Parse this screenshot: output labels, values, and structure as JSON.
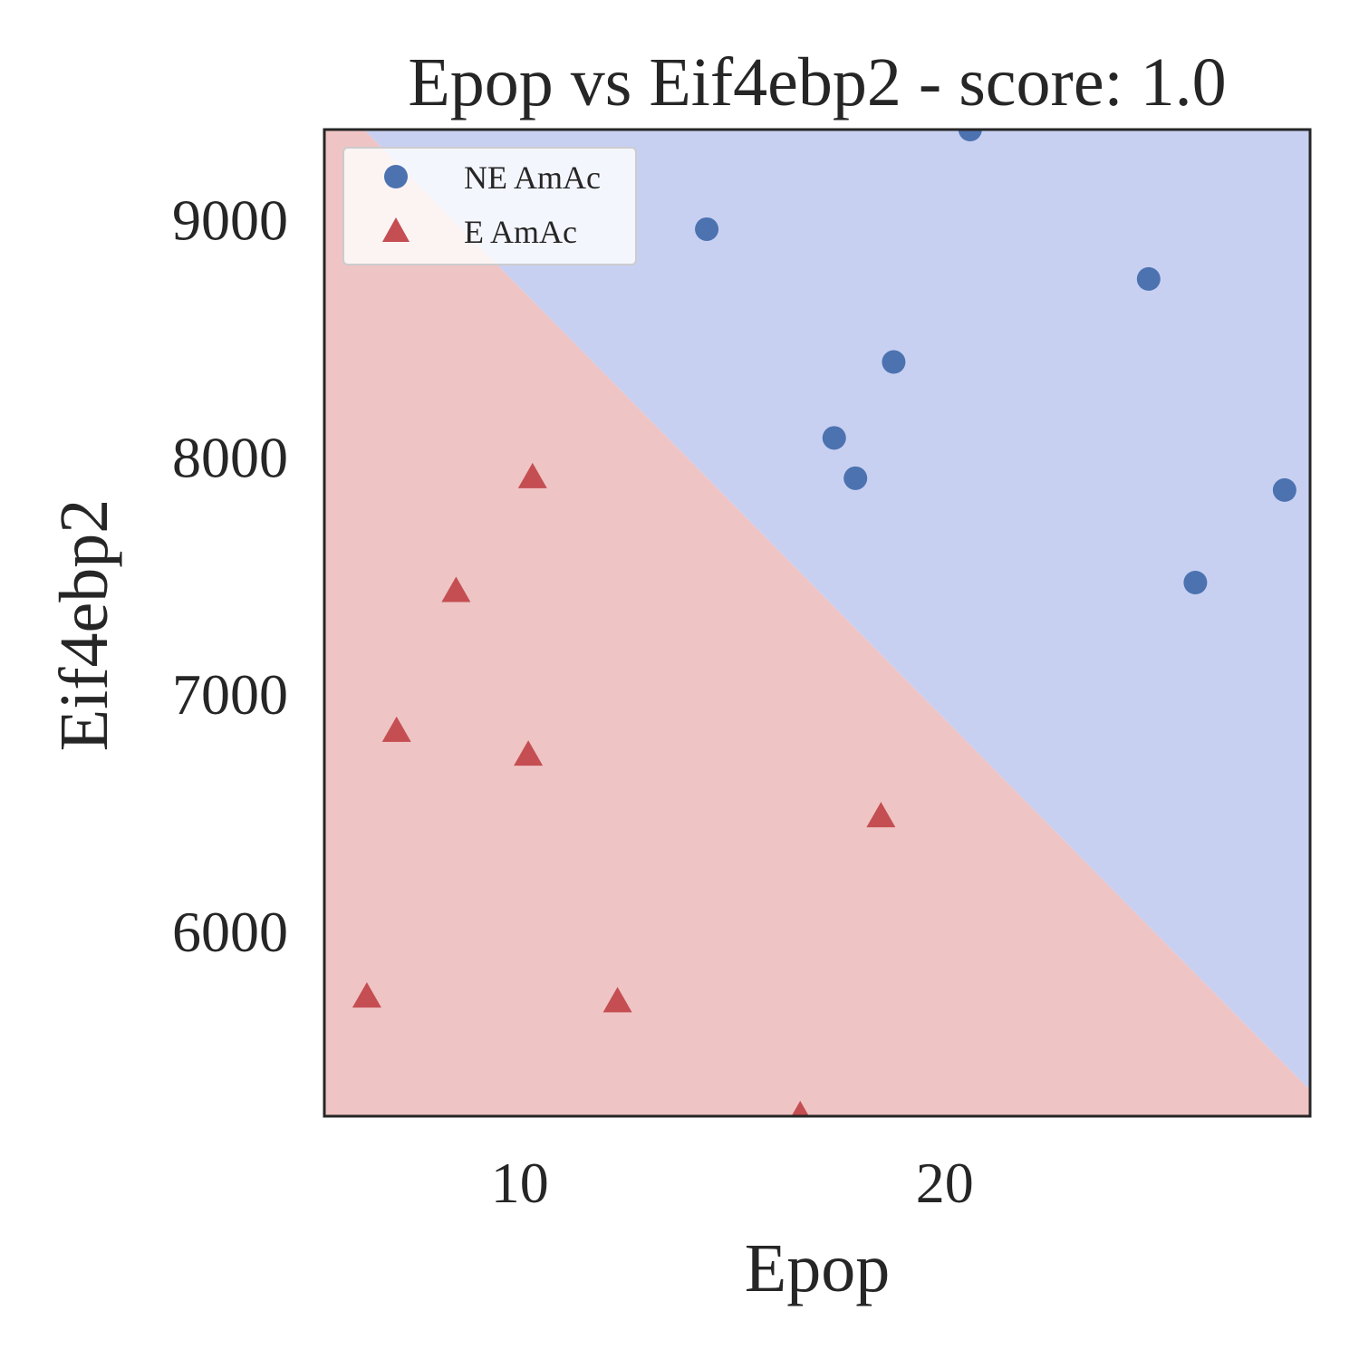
{
  "chart_data": {
    "type": "scatter",
    "title": "Epop vs Eif4ebp2 - score: 1.0",
    "xlabel": "Epop",
    "ylabel": "Eif4ebp2",
    "xlim": [
      5.4,
      28.6
    ],
    "ylim": [
      5220,
      9380
    ],
    "xticks": [
      10,
      20
    ],
    "yticks": [
      6000,
      7000,
      8000,
      9000
    ],
    "grid": false,
    "legend_position": "top-left",
    "decision_boundary": {
      "line": [
        [
          5.4,
          9550
        ],
        [
          28.6,
          5330
        ]
      ],
      "upper_region_color": "#c8d0f2",
      "lower_region_color": "#efc4c4",
      "upper_class": "NE AmAc",
      "lower_class": "E AmAc"
    },
    "series": [
      {
        "name": "NE AmAc",
        "marker": "circle",
        "color": "#4c72b0",
        "points": [
          {
            "x": 14.4,
            "y": 8960
          },
          {
            "x": 20.6,
            "y": 9380
          },
          {
            "x": 24.8,
            "y": 8750
          },
          {
            "x": 18.8,
            "y": 8400
          },
          {
            "x": 17.4,
            "y": 8080
          },
          {
            "x": 17.9,
            "y": 7910
          },
          {
            "x": 28.0,
            "y": 7860
          },
          {
            "x": 25.9,
            "y": 7470
          }
        ]
      },
      {
        "name": "E AmAc",
        "marker": "triangle",
        "color": "#c44e52",
        "points": [
          {
            "x": 10.3,
            "y": 7910
          },
          {
            "x": 8.5,
            "y": 7430
          },
          {
            "x": 7.1,
            "y": 6840
          },
          {
            "x": 10.2,
            "y": 6740
          },
          {
            "x": 18.5,
            "y": 6480
          },
          {
            "x": 6.4,
            "y": 5720
          },
          {
            "x": 12.3,
            "y": 5700
          },
          {
            "x": 16.6,
            "y": 5220
          }
        ]
      }
    ]
  }
}
